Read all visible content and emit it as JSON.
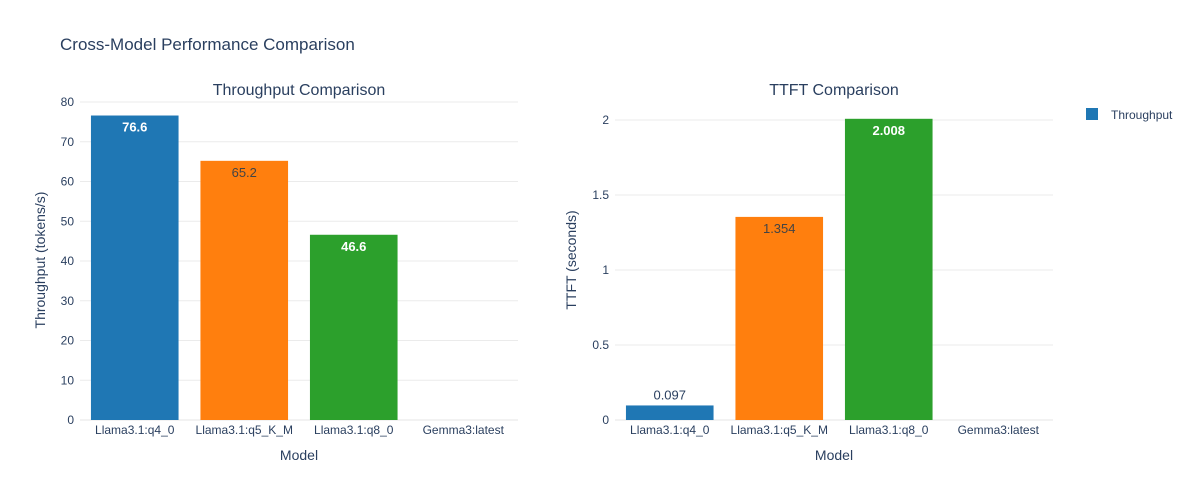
{
  "title": "Cross-Model Performance Comparison",
  "legend": {
    "entries": [
      {
        "name": "Throughput",
        "color": "#1f77b4"
      }
    ]
  },
  "chart_data": [
    {
      "type": "bar",
      "title": "Throughput Comparison",
      "xlabel": "Model",
      "ylabel": "Throughput (tokens/s)",
      "categories": [
        "Llama3.1:q4_0",
        "Llama3.1:q5_K_M",
        "Llama3.1:q8_0",
        "Gemma3:latest"
      ],
      "values": [
        76.6,
        65.2,
        46.6,
        0
      ],
      "labels": [
        "76.6",
        "65.2",
        "46.6",
        ""
      ],
      "label_colors": [
        "#ffffff",
        "#444444",
        "#ffffff",
        "#ffffff"
      ],
      "label_bold": [
        true,
        false,
        true,
        false
      ],
      "colors": [
        "#1f77b4",
        "#ff7f0e",
        "#2ca02c",
        "#d62728"
      ],
      "ylim": [
        0,
        80
      ],
      "yticks": [
        0,
        10,
        20,
        30,
        40,
        50,
        60,
        70,
        80
      ],
      "ytick_labels": [
        "0",
        "10",
        "20",
        "30",
        "40",
        "50",
        "60",
        "70",
        "80"
      ],
      "grid": true
    },
    {
      "type": "bar",
      "title": "TTFT Comparison",
      "xlabel": "Model",
      "ylabel": "TTFT (seconds)",
      "categories": [
        "Llama3.1:q4_0",
        "Llama3.1:q5_K_M",
        "Llama3.1:q8_0",
        "Gemma3:latest"
      ],
      "values": [
        0.097,
        1.354,
        2.008,
        0
      ],
      "labels": [
        "0.097",
        "1.354",
        "2.008",
        ""
      ],
      "label_colors": [
        "#444444",
        "#444444",
        "#ffffff",
        "#ffffff"
      ],
      "label_bold": [
        false,
        false,
        true,
        false
      ],
      "label_outside": [
        true,
        false,
        false,
        false
      ],
      "colors": [
        "#1f77b4",
        "#ff7f0e",
        "#2ca02c",
        "#d62728"
      ],
      "ylim": [
        0,
        2.12
      ],
      "yticks": [
        0,
        0.5,
        1,
        1.5,
        2
      ],
      "ytick_labels": [
        "0",
        "0.5",
        "1",
        "1.5",
        "2"
      ],
      "grid": true
    }
  ]
}
